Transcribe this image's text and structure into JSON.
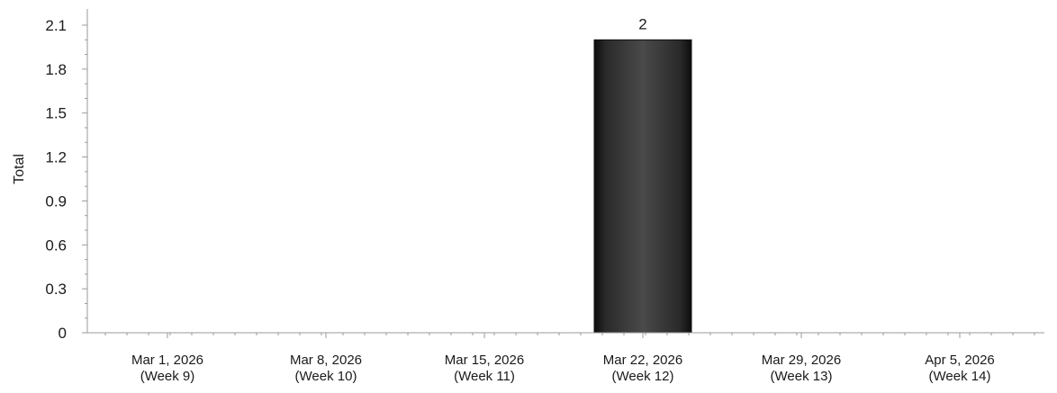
{
  "chart_data": {
    "type": "bar",
    "title": "",
    "xlabel": "",
    "ylabel": "Total",
    "ylim": [
      0,
      2.1
    ],
    "yticks": [
      "0",
      "0.3",
      "0.6",
      "0.9",
      "1.2",
      "1.5",
      "1.8",
      "2.1"
    ],
    "categories": [
      [
        "Mar 1, 2026",
        "(Week 9)"
      ],
      [
        "Mar 8, 2026",
        "(Week 10)"
      ],
      [
        "Mar 15, 2026",
        "(Week 11)"
      ],
      [
        "Mar 22, 2026",
        "(Week 12)"
      ],
      [
        "Mar 29, 2026",
        "(Week 13)"
      ],
      [
        "Apr 5, 2026",
        "(Week 14)"
      ]
    ],
    "values": [
      0,
      0,
      0,
      2,
      0,
      0
    ],
    "data_labels": [
      "",
      "",
      "",
      "2",
      "",
      ""
    ],
    "grid": false,
    "bar_color": "#3a3a3a",
    "axis_color": "#9a9a9a"
  }
}
